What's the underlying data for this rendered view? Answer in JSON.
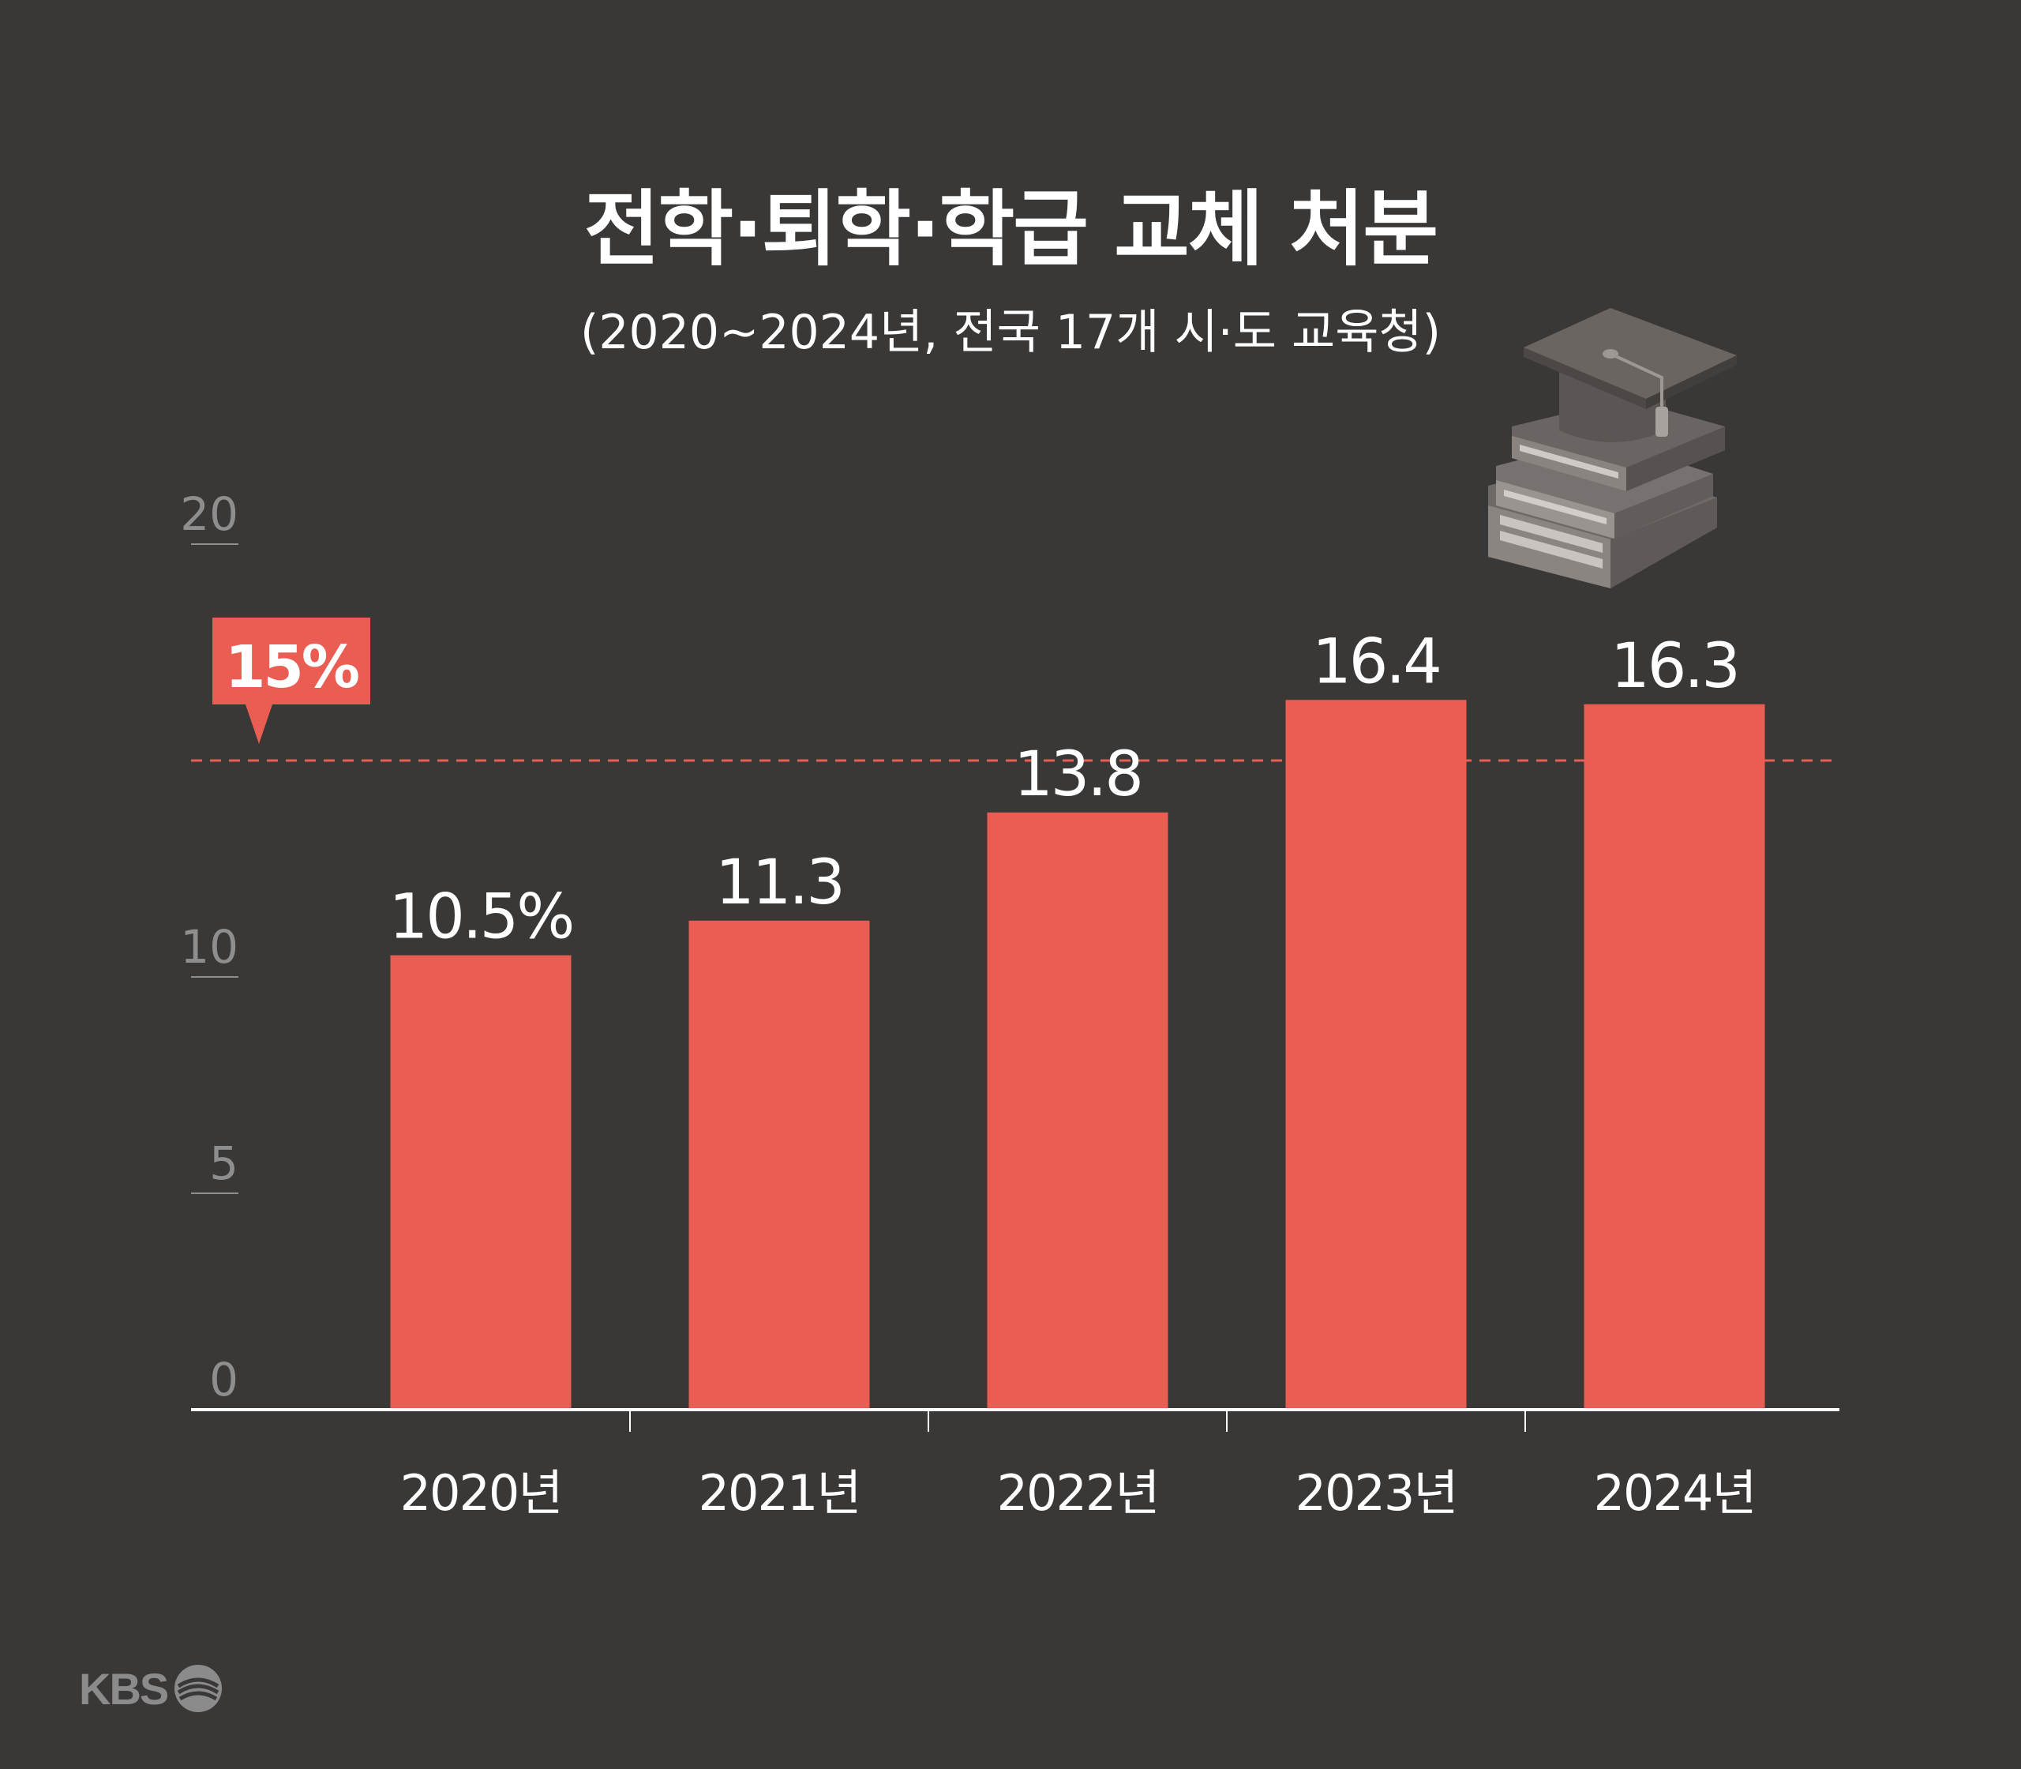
{
  "title": "전학·퇴학·학급 교체 처분",
  "subtitle": "(2020~2024년, 전국 17개 시·도 교육청)",
  "logo": "KBS",
  "colors": {
    "background": "#3a3837",
    "bar": "#e95d52",
    "axis": "#ffffff",
    "tick_label": "#8f8e8e",
    "reference_line": "#e95d52"
  },
  "icon": "graduation-cap-on-books-icon",
  "chart_data": {
    "type": "bar",
    "categories": [
      "2020년",
      "2021년",
      "2022년",
      "2023년",
      "2024년"
    ],
    "values": [
      10.5,
      11.3,
      13.8,
      16.4,
      16.3
    ],
    "data_labels": [
      "10.5%",
      "11.3",
      "13.8",
      "16.4",
      "16.3"
    ],
    "ylim": [
      0,
      20
    ],
    "yticks": [
      0,
      5,
      10,
      20
    ],
    "ytick_labels": [
      "0",
      "5",
      "10",
      "20"
    ],
    "reference_line": {
      "value": 15,
      "label": "15%"
    },
    "xlabel": "",
    "ylabel": ""
  }
}
